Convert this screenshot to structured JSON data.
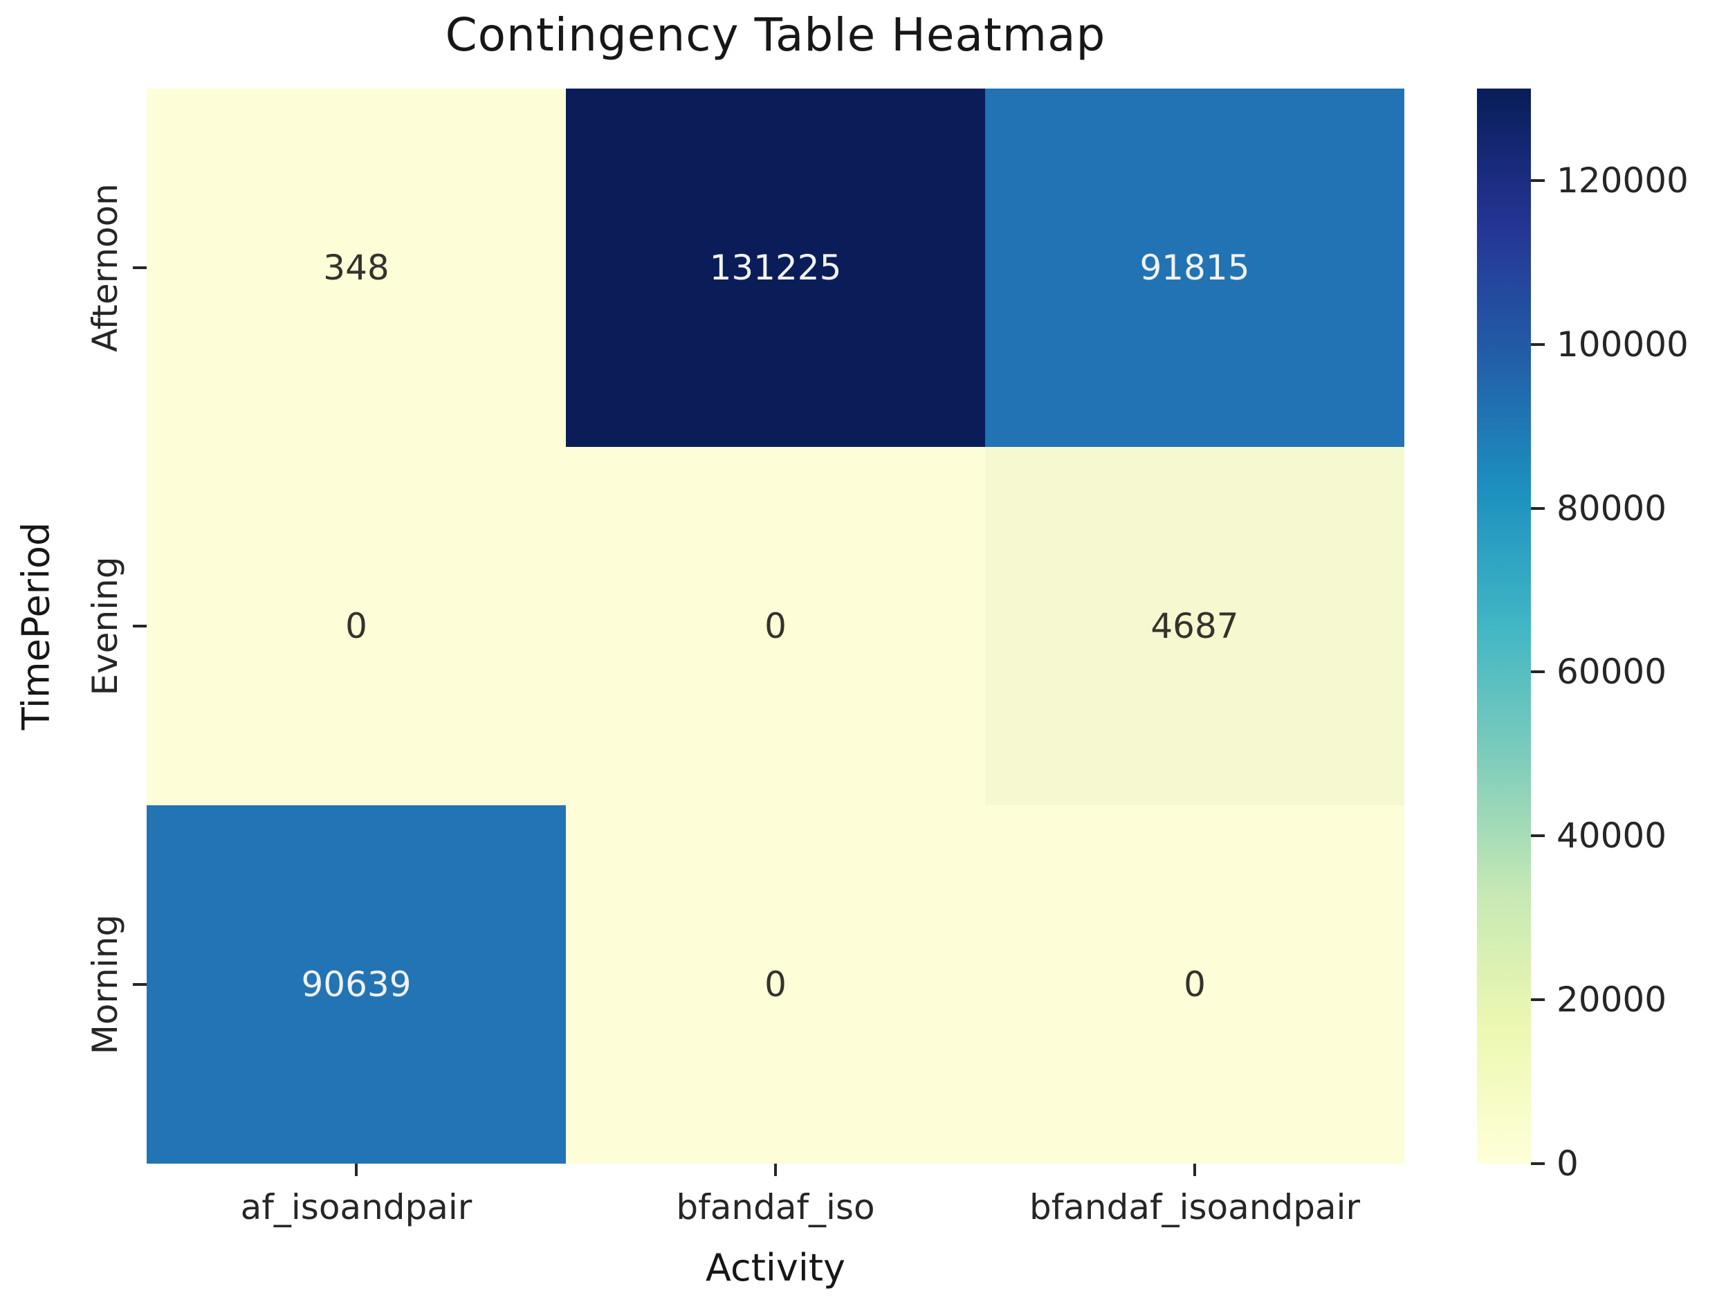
{
  "title": "Contingency Table Heatmap",
  "axes": {
    "x_label": "Activity",
    "y_label": "TimePeriod",
    "x_ticks": [
      "af_isoandpair",
      "bfandaf_iso",
      "bfandaf_isoandpair"
    ],
    "y_ticks": [
      "Afternoon",
      "Evening",
      "Morning"
    ]
  },
  "heatmap": {
    "labels": [
      [
        "348",
        "131225",
        "91815"
      ],
      [
        "0",
        "0",
        "4687"
      ],
      [
        "90639",
        "0",
        "0"
      ]
    ],
    "cell_colors": [
      [
        "#fdfdd8",
        "#0a1d58",
        "#2173b4"
      ],
      [
        "#fdfdd8",
        "#fdfdd8",
        "#f6f9d0"
      ],
      [
        "#2274b5",
        "#fdfdd8",
        "#fdfdd8"
      ]
    ],
    "text_colors": [
      [
        "#33332b",
        "#f2f2f2",
        "#f2f2f2"
      ],
      [
        "#33332b",
        "#33332b",
        "#33332b"
      ],
      [
        "#f2f2f2",
        "#33332b",
        "#33332b"
      ]
    ]
  },
  "colorbar": {
    "vmin": 0,
    "vmax": 131225,
    "ticks": [
      0,
      20000,
      40000,
      60000,
      80000,
      100000,
      120000
    ],
    "gradient_bottom_to_top": [
      "#ffffd9",
      "#edf8b1",
      "#c7e9b4",
      "#7fcdbb",
      "#41b6c4",
      "#1d91c0",
      "#225ea8",
      "#253494",
      "#081d58"
    ]
  },
  "chart_data": {
    "type": "heatmap",
    "title": "Contingency Table Heatmap",
    "xlabel": "Activity",
    "ylabel": "TimePeriod",
    "x_categories": [
      "af_isoandpair",
      "bfandaf_iso",
      "bfandaf_isoandpair"
    ],
    "y_categories": [
      "Afternoon",
      "Evening",
      "Morning"
    ],
    "values": [
      [
        348,
        131225,
        91815
      ],
      [
        0,
        0,
        4687
      ],
      [
        90639,
        0,
        0
      ]
    ],
    "vmin": 0,
    "vmax": 131225,
    "colormap": "YlGnBu",
    "colorbar_ticks": [
      0,
      20000,
      40000,
      60000,
      80000,
      100000,
      120000
    ],
    "colorbar_position": "right",
    "annotations": true,
    "grid": false
  }
}
